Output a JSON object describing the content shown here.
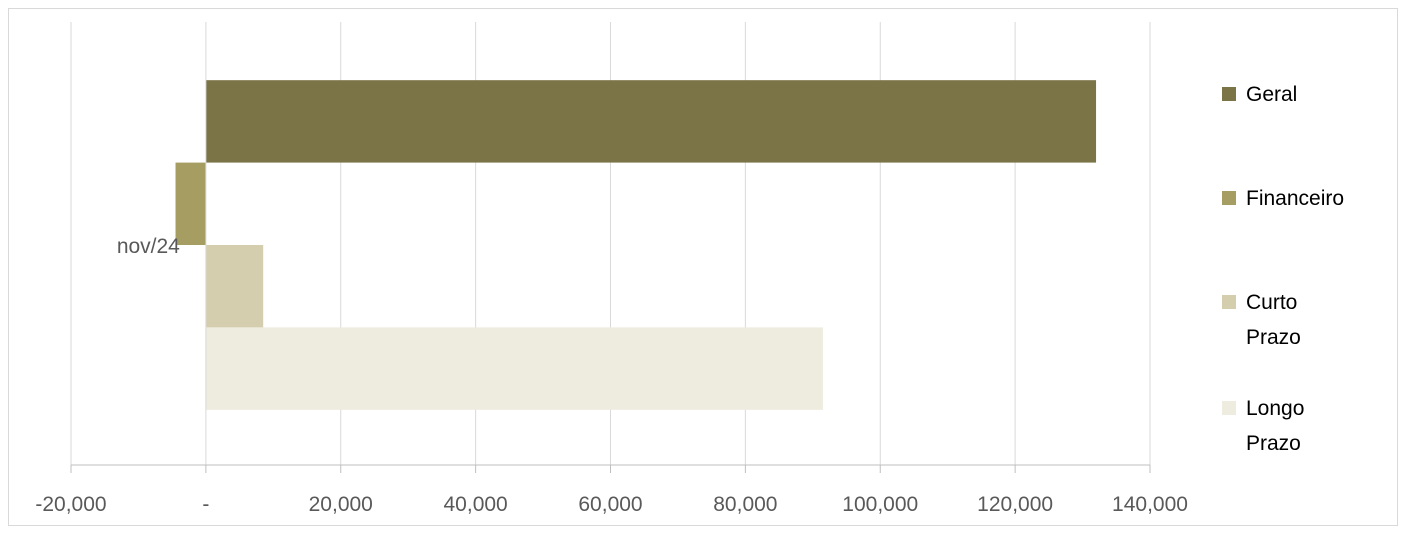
{
  "chart_data": {
    "type": "bar",
    "orientation": "horizontal",
    "categories": [
      "nov/24"
    ],
    "series": [
      {
        "name": "Geral",
        "values": [
          132000
        ],
        "color": "#7b7447"
      },
      {
        "name": "Financeiro",
        "values": [
          -4500
        ],
        "color": "#a69d63"
      },
      {
        "name": "Curto Prazo",
        "values": [
          8500
        ],
        "color": "#d4ceae"
      },
      {
        "name": "Longo Prazo",
        "values": [
          91500
        ],
        "color": "#eeebdf"
      }
    ],
    "xlim": [
      -20000,
      140000
    ],
    "xticks": [
      -20000,
      0,
      20000,
      40000,
      60000,
      80000,
      100000,
      120000,
      140000
    ],
    "xtick_labels": [
      "-20,000",
      "-",
      "20,000",
      "40,000",
      "60,000",
      "80,000",
      "100,000",
      "120,000",
      "140,000"
    ],
    "legend_lines": [
      [
        "Geral"
      ],
      [
        "Financeiro"
      ],
      [
        "Curto",
        "Prazo"
      ],
      [
        "Longo",
        "Prazo"
      ]
    ],
    "grid": true,
    "legend_position": "right",
    "title": "",
    "xlabel": "",
    "ylabel": ""
  }
}
